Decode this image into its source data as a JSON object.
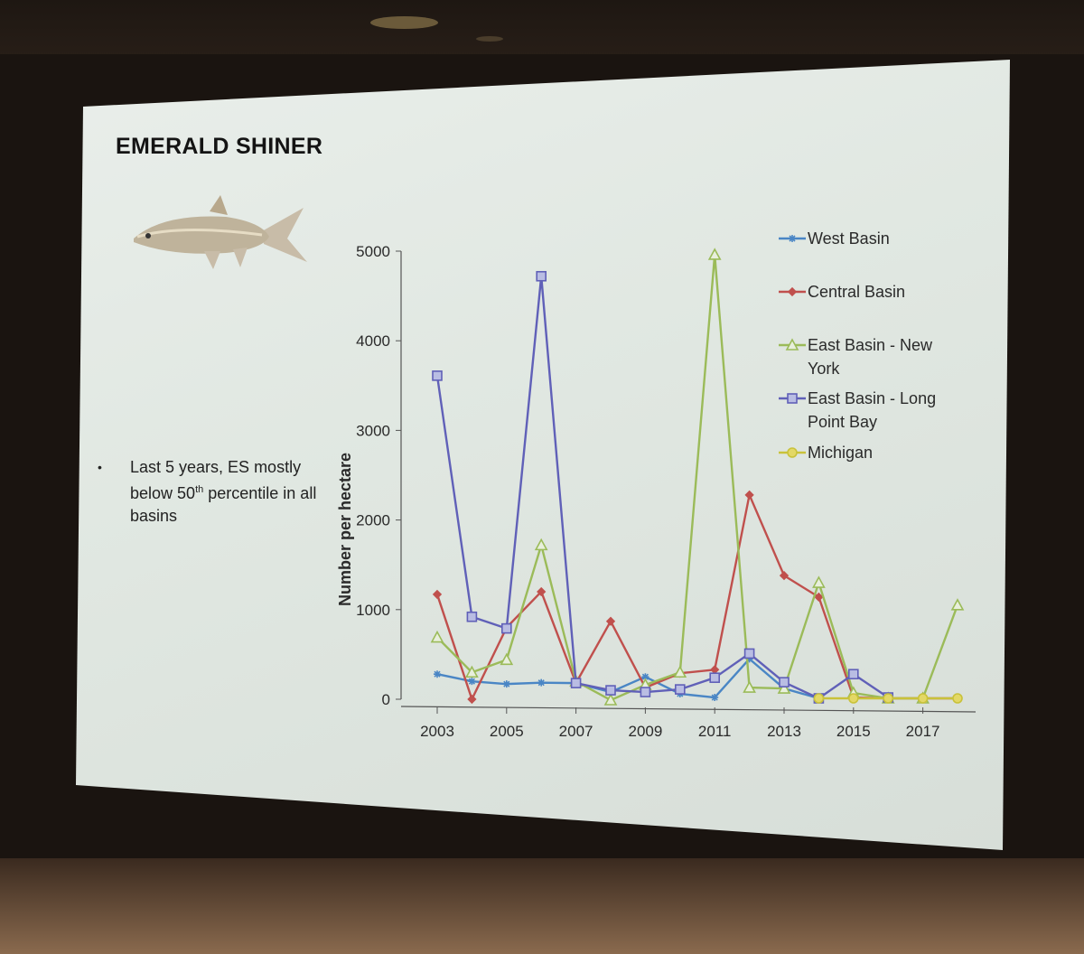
{
  "slide": {
    "title": "EMERALD SHINER",
    "bullet": {
      "before": "Last 5 years, ES mostly below 50",
      "superscript": "th",
      "after": " percentile in all basins"
    },
    "fish_image": "emerald-shiner-fish-illustration"
  },
  "chart_data": {
    "type": "line",
    "ylabel": "Number per hectare",
    "xlabel": "",
    "x": [
      2003,
      2004,
      2005,
      2006,
      2007,
      2008,
      2009,
      2010,
      2011,
      2012,
      2013,
      2014,
      2015,
      2016,
      2017,
      2018
    ],
    "x_tick_labels": [
      "2003",
      "2005",
      "2007",
      "2009",
      "2011",
      "2013",
      "2015",
      "2017"
    ],
    "y_tick_labels": [
      "0",
      "1000",
      "2000",
      "3000",
      "4000",
      "5000"
    ],
    "xlim": [
      2003,
      2018
    ],
    "ylim": [
      0,
      5000
    ],
    "legend_position": "right",
    "grid": false,
    "series": [
      {
        "name": "West Basin",
        "color": "#4a86c5",
        "marker": "star",
        "values": [
          280,
          200,
          170,
          185,
          180,
          80,
          250,
          60,
          20,
          450,
          120,
          10,
          null,
          null,
          null,
          null
        ]
      },
      {
        "name": "Central Basin",
        "color": "#c0504d",
        "marker": "diamond",
        "values": [
          1170,
          0,
          800,
          1200,
          180,
          870,
          130,
          290,
          330,
          2280,
          1380,
          1140,
          20,
          10,
          10,
          10
        ]
      },
      {
        "name": "East Basin - New York",
        "color": "#9bbb59",
        "marker": "triangle",
        "values": [
          690,
          300,
          440,
          1720,
          200,
          -10,
          160,
          300,
          4960,
          130,
          120,
          1300,
          70,
          10,
          10,
          1050
        ]
      },
      {
        "name": "East Basin - Long Point Bay",
        "color": "#6060b8",
        "marker": "square",
        "values": [
          3610,
          920,
          790,
          4720,
          180,
          100,
          80,
          110,
          240,
          510,
          190,
          10,
          280,
          20,
          null,
          null
        ]
      },
      {
        "name": "Michigan",
        "color": "#c9c23a",
        "marker": "circle",
        "values": [
          null,
          null,
          null,
          null,
          null,
          null,
          null,
          null,
          null,
          null,
          null,
          10,
          10,
          10,
          10,
          10
        ]
      }
    ]
  }
}
